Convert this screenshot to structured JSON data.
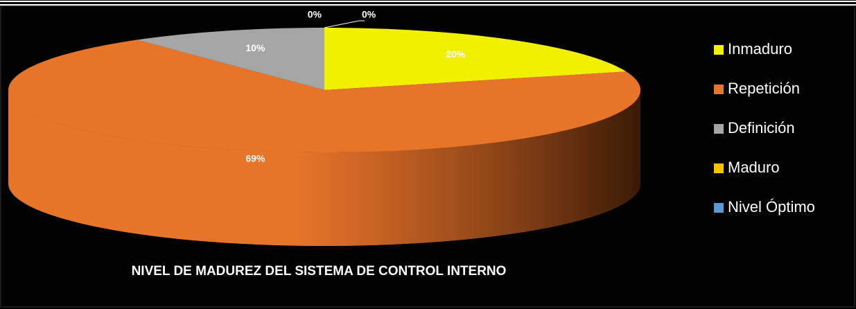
{
  "chart_data": {
    "type": "pie3d",
    "title": "NIVEL DE MADUREZ DEL SISTEMA DE CONTROL INTERNO",
    "categories": [
      "Inmaduro",
      "Repetición",
      "Definición",
      "Maduro",
      "Nivel Óptimo"
    ],
    "values": [
      20,
      69,
      10,
      0,
      0
    ],
    "value_labels": [
      "20%",
      "69%",
      "10%",
      "0%",
      "0%"
    ],
    "colors": [
      "#f0f000",
      "#e8742a",
      "#a5a5a5",
      "#ffc000",
      "#5b9bd5"
    ],
    "legend": "right"
  }
}
